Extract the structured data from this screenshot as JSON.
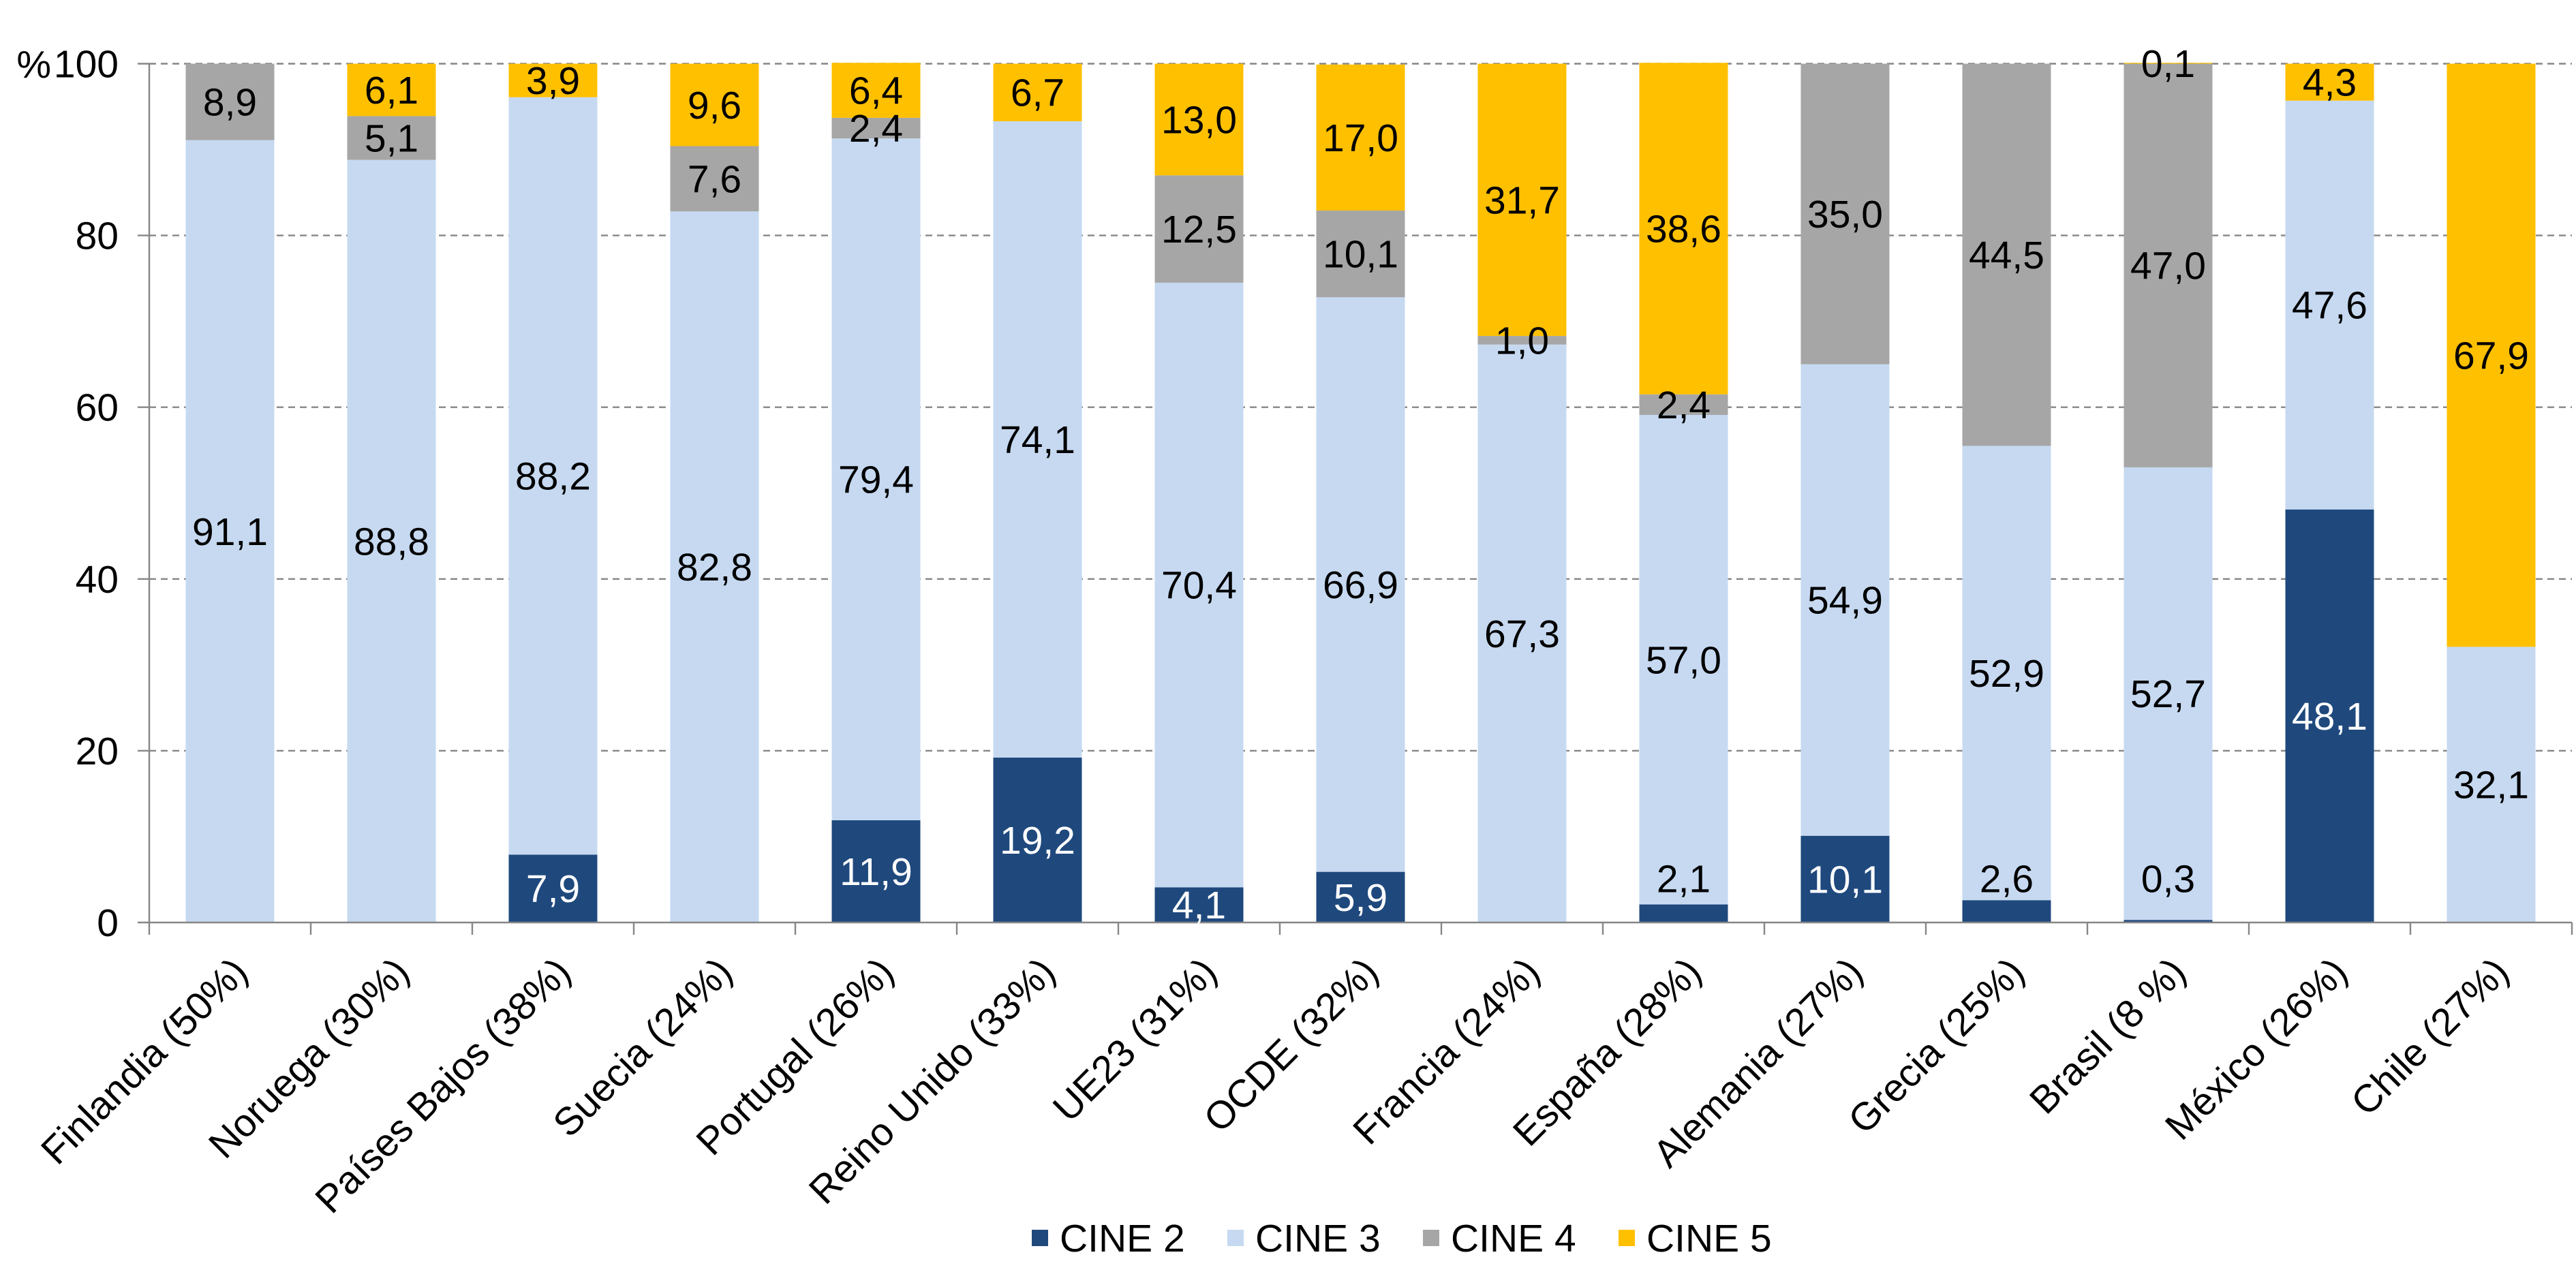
{
  "chart_data": {
    "type": "bar",
    "stacked": true,
    "ylabel": "%",
    "ylim": [
      0,
      100
    ],
    "yticks": [
      0,
      20,
      40,
      60,
      80,
      100
    ],
    "grid": true,
    "legend": "bottom",
    "categories": [
      "Finlandia (50%)",
      "Noruega (30%)",
      "Países Bajos (38%)",
      "Suecia (24%)",
      "Portugal (26%)",
      "Reino Unido (33%)",
      "UE23 (31%)",
      "OCDE (32%)",
      "Francia (24%)",
      "España (28%)",
      "Alemania (27%)",
      "Grecia (25%)",
      "Brasil (8 %)",
      "México (26%)",
      "Chile (27%)"
    ],
    "series": [
      {
        "name": "CINE 2",
        "color": "#1F497D",
        "values": [
          null,
          null,
          7.9,
          null,
          11.9,
          19.2,
          4.1,
          5.9,
          null,
          2.1,
          10.1,
          2.6,
          0.3,
          48.1,
          null
        ],
        "labels": [
          null,
          null,
          "7,9",
          null,
          "11,9",
          "19,2",
          "4,1",
          "5,9",
          null,
          "2,1",
          "10,1",
          "2,6",
          "0,3",
          "48,1",
          null
        ]
      },
      {
        "name": "CINE 3",
        "color": "#C6D9F1",
        "values": [
          91.1,
          88.8,
          88.2,
          82.8,
          79.4,
          74.1,
          70.4,
          66.9,
          67.3,
          57.0,
          54.9,
          52.9,
          52.7,
          47.6,
          32.1
        ],
        "labels": [
          "91,1",
          "88,8",
          "88,2",
          "82,8",
          "79,4",
          "74,1",
          "70,4",
          "66,9",
          "67,3",
          "57,0",
          "54,9",
          "52,9",
          "52,7",
          "47,6",
          "32,1"
        ]
      },
      {
        "name": "CINE 4",
        "color": "#A6A6A6",
        "values": [
          8.9,
          5.1,
          null,
          7.6,
          2.4,
          null,
          12.5,
          10.1,
          1.0,
          2.4,
          35.0,
          44.5,
          47.0,
          null,
          null
        ],
        "labels": [
          "8,9",
          "5,1",
          null,
          "7,6",
          "2,4",
          null,
          "12,5",
          "10,1",
          "1,0",
          "2,4",
          "35,0",
          "44,5",
          "47,0",
          null,
          null
        ]
      },
      {
        "name": "CINE 5",
        "color": "#FFC000",
        "values": [
          null,
          6.1,
          3.9,
          9.6,
          6.4,
          6.7,
          13.0,
          17.0,
          31.7,
          38.6,
          null,
          null,
          0.1,
          4.3,
          67.9
        ],
        "labels": [
          null,
          "6,1",
          "3,9",
          "9,6",
          "6,4",
          "6,7",
          "13,0",
          "17,0",
          "31,7",
          "38,6",
          null,
          null,
          "0,1",
          "4,3",
          "67,9"
        ]
      }
    ]
  }
}
